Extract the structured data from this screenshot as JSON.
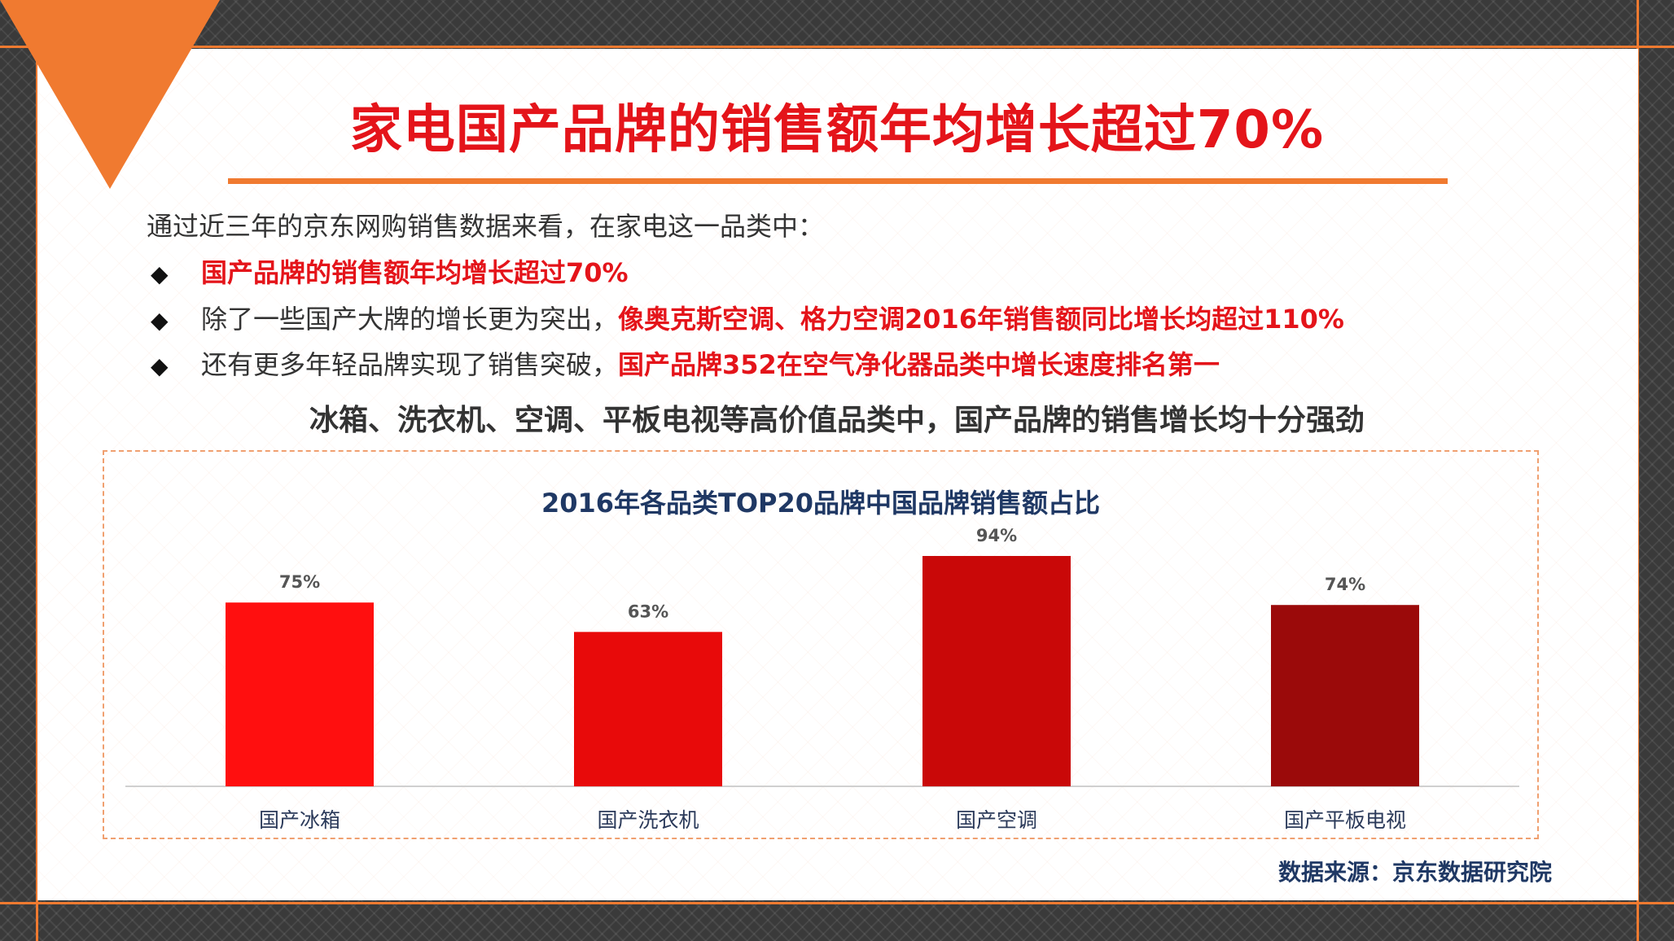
{
  "slide": {
    "title": "家电国产品牌的销售额年均增长超过70%",
    "intro": "通过近三年的京东网购销售数据来看，在家电这一品类中：",
    "bullet_marker": "◆",
    "bullets": [
      {
        "plain": "",
        "highlight": "国产品牌的销售额年均增长超过70%"
      },
      {
        "plain": "除了一些国产大牌的增长更为突出，",
        "highlight": "像奥克斯空调、格力空调2016年销售额同比增长均超过110%"
      },
      {
        "plain": "还有更多年轻品牌实现了销售突破，",
        "highlight": "国产品牌352在空气净化器品类中增长速度排名第一"
      }
    ],
    "subhead": "冰箱、洗衣机、空调、平板电视等高价值品类中，国产品牌的销售增长均十分强劲",
    "source": "数据来源：京东数据研究院"
  },
  "colors": {
    "accent_orange": "#f07a30",
    "title_red": "#e4141a",
    "navy": "#1f3864"
  },
  "chart_data": {
    "type": "bar",
    "title": "2016年各品类TOP20品牌中国品牌销售额占比",
    "categories": [
      "国产冰箱",
      "国产洗衣机",
      "国产空调",
      "国产平板电视"
    ],
    "values": [
      75,
      63,
      94,
      74
    ],
    "value_labels": [
      "75%",
      "63%",
      "94%",
      "74%"
    ],
    "bar_colors": [
      "#ff0f0f",
      "#e80a0a",
      "#c90808",
      "#9b0a0a"
    ],
    "ylim": [
      0,
      100
    ],
    "grid": false,
    "legend": "none"
  }
}
